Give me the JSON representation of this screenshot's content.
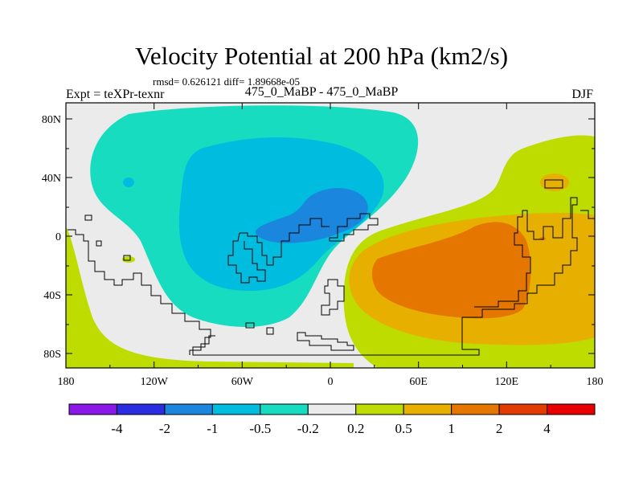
{
  "header": {
    "title": "Velocity Potential at 200 hPa (km2/s)",
    "stats": "rmsd= 0.626121 diff= 1.89668e-05",
    "left_label": "Expt = teXPr-texnr",
    "center_label": "475_0_MaBP - 475_0_MaBP",
    "right_label": "DJF"
  },
  "axes": {
    "y_ticks": [
      "80N",
      "40N",
      "0",
      "40S",
      "80S"
    ],
    "x_ticks": [
      "180",
      "120W",
      "60W",
      "0",
      "60E",
      "120E",
      "180"
    ]
  },
  "colorbar": {
    "labels": [
      "-4",
      "-2",
      "-1",
      "-0.5",
      "-0.2",
      "0.2",
      "0.5",
      "1",
      "2",
      "4"
    ],
    "colors": [
      "#8a18e6",
      "#2a2ee0",
      "#1b86de",
      "#00bde0",
      "#18dcc0",
      "#ebebeb",
      "#bedc00",
      "#e7b000",
      "#e57600",
      "#e23d00",
      "#e80000"
    ]
  },
  "palette": {
    "background_zero": "#ebebeb",
    "pos_light": "#bedc00",
    "pos_mid": "#e7b000",
    "pos_strong": "#e57600",
    "pos_stronger": "#e23d00",
    "neg_light": "#18dcc0",
    "neg_mid": "#00bde0",
    "neg_strong": "#1b86de",
    "neg_stronger": "#2a2ee0"
  }
}
